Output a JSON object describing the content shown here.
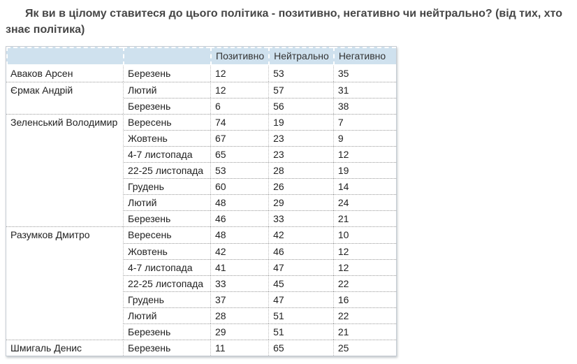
{
  "page": {
    "title": "Як ви в цілому ставитеся до цього політика - позитивно, негативно чи нейтрально? (від тих, хто знає політика)"
  },
  "colors": {
    "header_bg": "#cfe1ee",
    "title_text": "#464646",
    "body_text": "#222222",
    "dotted_border": "#999999",
    "outer_border": "#c6ccd3"
  },
  "chart_data": {
    "type": "table",
    "title": "Як ви в цілому ставитеся до цього політика - позитивно, негативно чи нейтрально? (від тих, хто знає політика)",
    "columns": [
      "",
      "",
      "Позитивно",
      "Нейтрально",
      "Негативно"
    ],
    "header_labels": {
      "positive": "Позитивно",
      "neutral": "Нейтрально",
      "negative": "Негативно"
    },
    "groups": [
      {
        "name": "Аваков Арсен",
        "rows": [
          {
            "month": "Березень",
            "positive": 12,
            "neutral": 53,
            "negative": 35
          }
        ]
      },
      {
        "name": "Єрмак Андрій",
        "rows": [
          {
            "month": "Лютий",
            "positive": 12,
            "neutral": 57,
            "negative": 31
          },
          {
            "month": "Березень",
            "positive": 6,
            "neutral": 56,
            "negative": 38
          }
        ]
      },
      {
        "name": "Зеленський Володимир",
        "rows": [
          {
            "month": "Вересень",
            "positive": 74,
            "neutral": 19,
            "negative": 7
          },
          {
            "month": "Жовтень",
            "positive": 67,
            "neutral": 23,
            "negative": 9
          },
          {
            "month": "4-7 листопада",
            "positive": 65,
            "neutral": 23,
            "negative": 12
          },
          {
            "month": "22-25 листопада",
            "positive": 53,
            "neutral": 28,
            "negative": 19
          },
          {
            "month": "Грудень",
            "positive": 60,
            "neutral": 26,
            "negative": 14
          },
          {
            "month": "Лютий",
            "positive": 48,
            "neutral": 29,
            "negative": 24
          },
          {
            "month": "Березень",
            "positive": 46,
            "neutral": 33,
            "negative": 21
          }
        ]
      },
      {
        "name": "Разумков Дмитро",
        "rows": [
          {
            "month": "Вересень",
            "positive": 48,
            "neutral": 42,
            "negative": 10
          },
          {
            "month": "Жовтень",
            "positive": 42,
            "neutral": 46,
            "negative": 12
          },
          {
            "month": "4-7 листопада",
            "positive": 41,
            "neutral": 47,
            "negative": 12
          },
          {
            "month": "22-25 листопада",
            "positive": 33,
            "neutral": 45,
            "negative": 22
          },
          {
            "month": "Грудень",
            "positive": 37,
            "neutral": 47,
            "negative": 16
          },
          {
            "month": "Лютий",
            "positive": 28,
            "neutral": 51,
            "negative": 22
          },
          {
            "month": "Березень",
            "positive": 29,
            "neutral": 51,
            "negative": 21
          }
        ]
      },
      {
        "name": "Шмигаль Денис",
        "rows": [
          {
            "month": "Березень",
            "positive": 11,
            "neutral": 65,
            "negative": 25
          }
        ]
      }
    ]
  }
}
